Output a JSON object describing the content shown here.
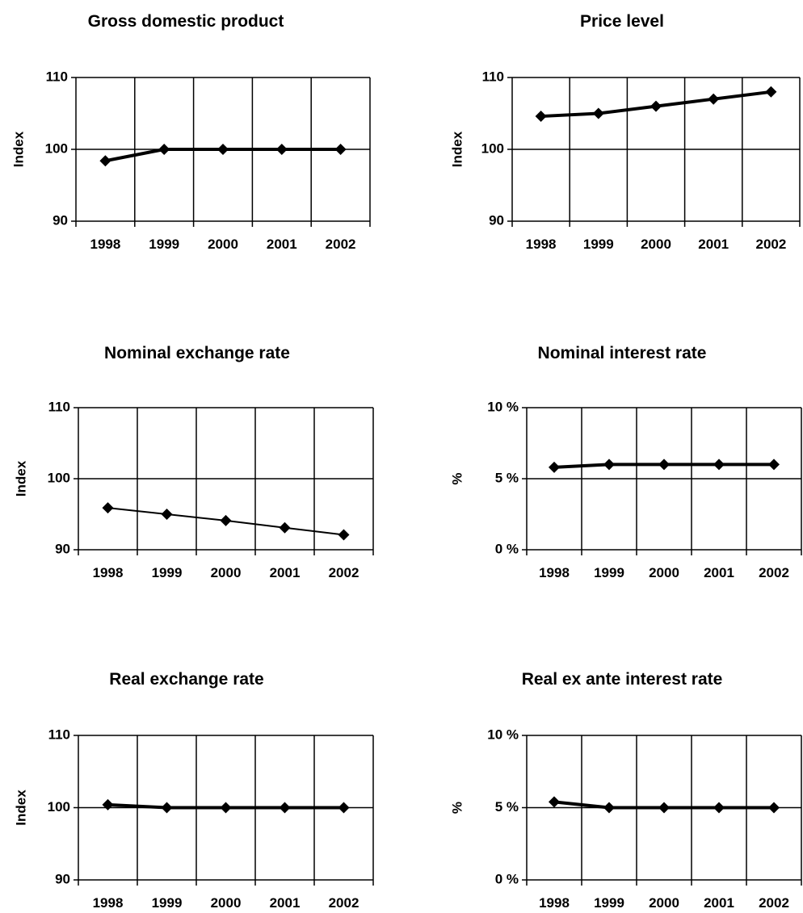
{
  "chart_data": [
    {
      "type": "line",
      "title": "Gross domestic product",
      "ylabel": "Index",
      "xlabel": "",
      "categories": [
        "1998",
        "1999",
        "2000",
        "2001",
        "2002"
      ],
      "yticks": [
        "90",
        "100",
        "110"
      ],
      "ylim": [
        90,
        110
      ],
      "grid": true,
      "series": [
        {
          "values": [
            98.4,
            100.0,
            100.0,
            100.0,
            100.0
          ]
        }
      ],
      "style": {
        "line": "#000000",
        "marker": "diamond",
        "stroke": "thick"
      }
    },
    {
      "type": "line",
      "title": "Price level",
      "ylabel": "Index",
      "xlabel": "",
      "categories": [
        "1998",
        "1999",
        "2000",
        "2001",
        "2002"
      ],
      "yticks": [
        "90",
        "100",
        "110"
      ],
      "ylim": [
        90,
        110
      ],
      "grid": true,
      "series": [
        {
          "values": [
            104.6,
            105.0,
            106.0,
            107.0,
            108.0
          ]
        }
      ],
      "style": {
        "line": "#000000",
        "marker": "diamond",
        "stroke": "thick"
      }
    },
    {
      "type": "line",
      "title": "Nominal exchange rate",
      "ylabel": "Index",
      "xlabel": "",
      "categories": [
        "1998",
        "1999",
        "2000",
        "2001",
        "2002"
      ],
      "yticks": [
        "90",
        "100",
        "110"
      ],
      "ylim": [
        90,
        110
      ],
      "grid": true,
      "series": [
        {
          "values": [
            95.9,
            95.0,
            94.1,
            93.1,
            92.1
          ]
        }
      ],
      "style": {
        "line": "#000000",
        "marker": "diamond",
        "stroke": "thin"
      }
    },
    {
      "type": "line",
      "title": "Nominal interest rate",
      "ylabel": "%",
      "xlabel": "",
      "categories": [
        "1998",
        "1999",
        "2000",
        "2001",
        "2002"
      ],
      "yticks": [
        "0 %",
        "5 %",
        "10 %"
      ],
      "ylim": [
        0,
        10
      ],
      "grid": true,
      "series": [
        {
          "values": [
            5.8,
            6.0,
            6.0,
            6.0,
            6.0
          ]
        }
      ],
      "style": {
        "line": "#000000",
        "marker": "diamond",
        "stroke": "thick"
      }
    },
    {
      "type": "line",
      "title": "Real exchange rate",
      "ylabel": "Index",
      "xlabel": "",
      "categories": [
        "1998",
        "1999",
        "2000",
        "2001",
        "2002"
      ],
      "yticks": [
        "90",
        "100",
        "110"
      ],
      "ylim": [
        90,
        110
      ],
      "grid": true,
      "series": [
        {
          "values": [
            100.4,
            100.0,
            100.0,
            100.0,
            100.0
          ]
        }
      ],
      "style": {
        "line": "#000000",
        "marker": "diamond",
        "stroke": "thick"
      }
    },
    {
      "type": "line",
      "title": "Real ex ante interest rate",
      "ylabel": "%",
      "xlabel": "",
      "categories": [
        "1998",
        "1999",
        "2000",
        "2001",
        "2002"
      ],
      "yticks": [
        "0 %",
        "5 %",
        "10 %"
      ],
      "ylim": [
        0,
        10
      ],
      "grid": true,
      "series": [
        {
          "values": [
            5.4,
            5.0,
            5.0,
            5.0,
            5.0
          ]
        }
      ],
      "style": {
        "line": "#000000",
        "marker": "diamond",
        "stroke": "thick"
      }
    }
  ]
}
